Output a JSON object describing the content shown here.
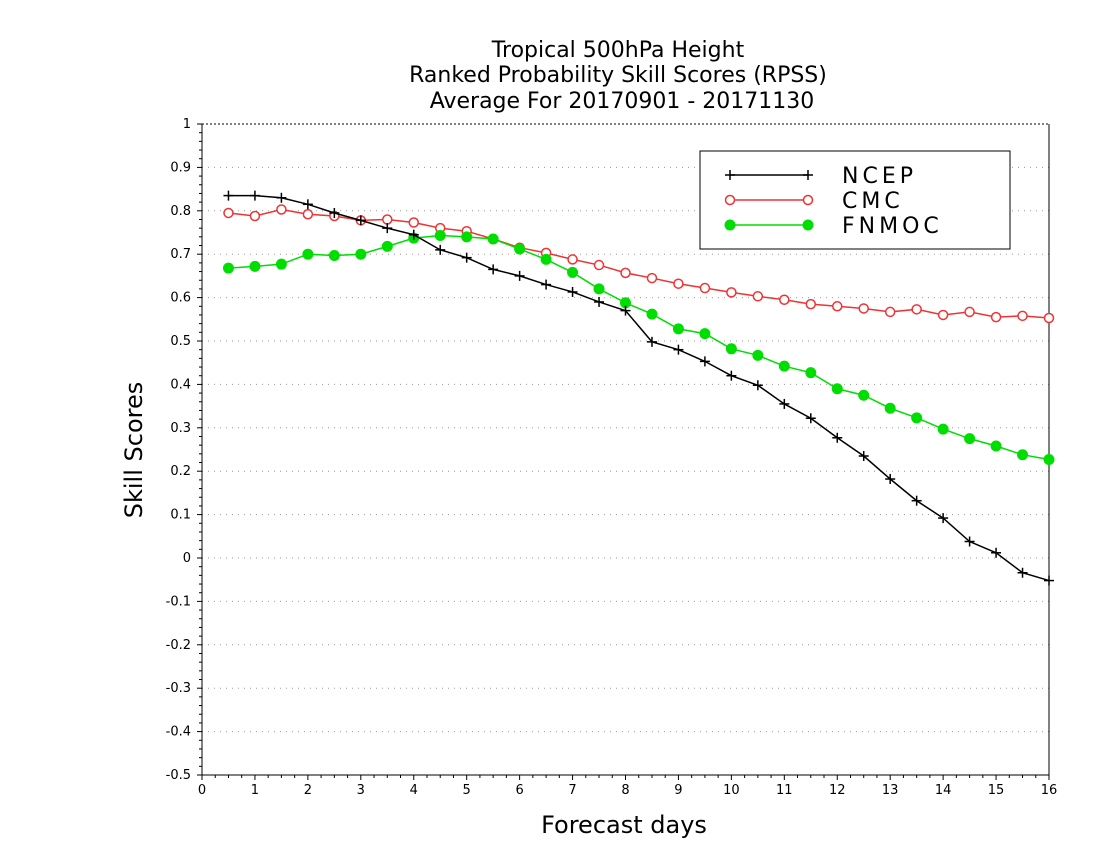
{
  "chart_data": {
    "type": "line",
    "title": [
      "Tropical 500hPa Height",
      "Ranked Probability Skill Scores (RPSS)",
      "Average For 20170901 - 20171130"
    ],
    "xlabel": "Forecast days",
    "ylabel": "Skill Scores",
    "xlim": [
      0,
      16
    ],
    "ylim": [
      -0.5,
      1
    ],
    "x_ticks": [
      0,
      1,
      2,
      3,
      4,
      5,
      6,
      7,
      8,
      9,
      10,
      11,
      12,
      13,
      14,
      15,
      16
    ],
    "y_ticks": [
      -0.5,
      -0.4,
      -0.3,
      -0.2,
      -0.1,
      0,
      0.1,
      0.2,
      0.3,
      0.4,
      0.5,
      0.6,
      0.7,
      0.8,
      0.9,
      1
    ],
    "y_tick_labels": [
      "-0.5",
      "-0.4",
      "-0.3",
      "-0.2",
      "-0.1",
      "0",
      "0.1",
      "0.2",
      "0.3",
      "0.4",
      "0.5",
      "0.6",
      "0.7",
      "0.8",
      "0.9",
      "1"
    ],
    "grid": "horizontal dotted",
    "legend_position": "top-right",
    "x": [
      0.5,
      1.0,
      1.5,
      2.0,
      2.5,
      3.0,
      3.5,
      4.0,
      4.5,
      5.0,
      5.5,
      6.0,
      6.5,
      7.0,
      7.5,
      8.0,
      8.5,
      9.0,
      9.5,
      10.0,
      10.5,
      11.0,
      11.5,
      12.0,
      12.5,
      13.0,
      13.5,
      14.0,
      14.5,
      15.0,
      15.5,
      16.0
    ],
    "series": [
      {
        "name": "NCEP",
        "color": "#000000",
        "marker": "plus",
        "values": [
          0.835,
          0.835,
          0.83,
          0.815,
          0.795,
          0.778,
          0.76,
          0.745,
          0.71,
          0.692,
          0.665,
          0.65,
          0.63,
          0.613,
          0.59,
          0.57,
          0.498,
          0.48,
          0.453,
          0.42,
          0.398,
          0.355,
          0.322,
          0.277,
          0.235,
          0.182,
          0.132,
          0.092,
          0.038,
          0.012,
          -0.034,
          -0.052
        ]
      },
      {
        "name": "CMC",
        "color": "#ee3333",
        "marker": "open-circle",
        "values": [
          0.795,
          0.788,
          0.803,
          0.792,
          0.788,
          0.778,
          0.78,
          0.773,
          0.76,
          0.753,
          0.735,
          0.715,
          0.703,
          0.688,
          0.675,
          0.657,
          0.645,
          0.632,
          0.622,
          0.612,
          0.603,
          0.595,
          0.585,
          0.58,
          0.575,
          0.567,
          0.573,
          0.56,
          0.567,
          0.555,
          0.558,
          0.553
        ]
      },
      {
        "name": "FNMOC",
        "color": "#00dd00",
        "marker": "filled-circle",
        "values": [
          0.668,
          0.672,
          0.677,
          0.7,
          0.697,
          0.7,
          0.718,
          0.737,
          0.743,
          0.74,
          0.735,
          0.712,
          0.688,
          0.658,
          0.62,
          0.588,
          0.562,
          0.528,
          0.517,
          0.482,
          0.467,
          0.442,
          0.427,
          0.39,
          0.375,
          0.345,
          0.323,
          0.297,
          0.275,
          0.258,
          0.238,
          0.227
        ]
      }
    ]
  }
}
